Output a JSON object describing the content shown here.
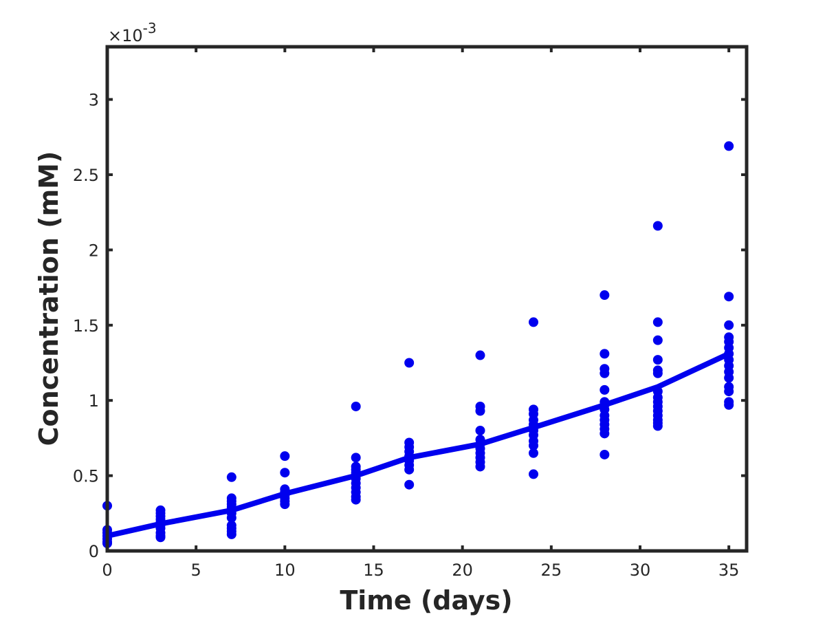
{
  "chart_data": {
    "type": "scatter",
    "xlabel": "Time (days)",
    "ylabel": "Concentration (mM)",
    "y_exponent_label": "×10",
    "y_exponent_power": "-3",
    "xlim": [
      0,
      36
    ],
    "ylim": [
      0,
      3.35
    ],
    "y_scale_note": "values in units of 1e-3 mM",
    "x_ticks": [
      0,
      5,
      10,
      15,
      20,
      25,
      30,
      35
    ],
    "y_ticks": [
      0,
      0.5,
      1,
      1.5,
      2,
      2.5,
      3
    ],
    "x_tick_labels": [
      "0",
      "5",
      "10",
      "15",
      "20",
      "25",
      "30",
      "35"
    ],
    "y_tick_labels": [
      "0",
      "0.5",
      "1",
      "1.5",
      "2",
      "2.5",
      "3"
    ],
    "grid": false,
    "colors": {
      "points": "#0000ee",
      "line": "#0000ee",
      "axes": "#262626"
    },
    "series": [
      {
        "type": "scatter",
        "points": [
          [
            0,
            0.3
          ],
          [
            0,
            0.14
          ],
          [
            0,
            0.12
          ],
          [
            0,
            0.1
          ],
          [
            0,
            0.08
          ],
          [
            0,
            0.06
          ],
          [
            0,
            0.05
          ],
          [
            3,
            0.27
          ],
          [
            3,
            0.25
          ],
          [
            3,
            0.23
          ],
          [
            3,
            0.21
          ],
          [
            3,
            0.19
          ],
          [
            3,
            0.17
          ],
          [
            3,
            0.15
          ],
          [
            3,
            0.12
          ],
          [
            3,
            0.1
          ],
          [
            3,
            0.09
          ],
          [
            7,
            0.49
          ],
          [
            7,
            0.35
          ],
          [
            7,
            0.33
          ],
          [
            7,
            0.31
          ],
          [
            7,
            0.29
          ],
          [
            7,
            0.27
          ],
          [
            7,
            0.25
          ],
          [
            7,
            0.22
          ],
          [
            7,
            0.17
          ],
          [
            7,
            0.15
          ],
          [
            7,
            0.13
          ],
          [
            7,
            0.11
          ],
          [
            10,
            0.63
          ],
          [
            10,
            0.52
          ],
          [
            10,
            0.41
          ],
          [
            10,
            0.39
          ],
          [
            10,
            0.37
          ],
          [
            10,
            0.35
          ],
          [
            10,
            0.33
          ],
          [
            10,
            0.31
          ],
          [
            14,
            0.96
          ],
          [
            14,
            0.62
          ],
          [
            14,
            0.56
          ],
          [
            14,
            0.54
          ],
          [
            14,
            0.52
          ],
          [
            14,
            0.5
          ],
          [
            14,
            0.48
          ],
          [
            14,
            0.45
          ],
          [
            14,
            0.42
          ],
          [
            14,
            0.39
          ],
          [
            14,
            0.36
          ],
          [
            14,
            0.34
          ],
          [
            17,
            1.25
          ],
          [
            17,
            0.72
          ],
          [
            17,
            0.69
          ],
          [
            17,
            0.66
          ],
          [
            17,
            0.63
          ],
          [
            17,
            0.6
          ],
          [
            17,
            0.57
          ],
          [
            17,
            0.54
          ],
          [
            17,
            0.44
          ],
          [
            21,
            1.3
          ],
          [
            21,
            0.96
          ],
          [
            21,
            0.93
          ],
          [
            21,
            0.8
          ],
          [
            21,
            0.74
          ],
          [
            21,
            0.71
          ],
          [
            21,
            0.68
          ],
          [
            21,
            0.65
          ],
          [
            21,
            0.62
          ],
          [
            21,
            0.59
          ],
          [
            21,
            0.56
          ],
          [
            24,
            1.52
          ],
          [
            24,
            0.94
          ],
          [
            24,
            0.91
          ],
          [
            24,
            0.87
          ],
          [
            24,
            0.84
          ],
          [
            24,
            0.8
          ],
          [
            24,
            0.77
          ],
          [
            24,
            0.73
          ],
          [
            24,
            0.7
          ],
          [
            24,
            0.65
          ],
          [
            24,
            0.51
          ],
          [
            28,
            1.7
          ],
          [
            28,
            1.31
          ],
          [
            28,
            1.21
          ],
          [
            28,
            1.18
          ],
          [
            28,
            1.07
          ],
          [
            28,
            0.99
          ],
          [
            28,
            0.97
          ],
          [
            28,
            0.94
          ],
          [
            28,
            0.9
          ],
          [
            28,
            0.87
          ],
          [
            28,
            0.84
          ],
          [
            28,
            0.81
          ],
          [
            28,
            0.78
          ],
          [
            28,
            0.64
          ],
          [
            31,
            2.16
          ],
          [
            31,
            1.52
          ],
          [
            31,
            1.4
          ],
          [
            31,
            1.27
          ],
          [
            31,
            1.2
          ],
          [
            31,
            1.18
          ],
          [
            31,
            1.06
          ],
          [
            31,
            1.02
          ],
          [
            31,
            0.99
          ],
          [
            31,
            0.96
          ],
          [
            31,
            0.93
          ],
          [
            31,
            0.9
          ],
          [
            31,
            0.87
          ],
          [
            31,
            0.85
          ],
          [
            31,
            0.83
          ],
          [
            35,
            2.69
          ],
          [
            35,
            1.69
          ],
          [
            35,
            1.5
          ],
          [
            35,
            1.42
          ],
          [
            35,
            1.39
          ],
          [
            35,
            1.35
          ],
          [
            35,
            1.31
          ],
          [
            35,
            1.27
          ],
          [
            35,
            1.23
          ],
          [
            35,
            1.19
          ],
          [
            35,
            1.15
          ],
          [
            35,
            1.09
          ],
          [
            35,
            1.06
          ],
          [
            35,
            0.99
          ],
          [
            35,
            0.97
          ]
        ]
      },
      {
        "type": "line",
        "x": [
          0,
          3,
          7,
          10,
          14,
          17,
          21,
          24,
          28,
          31,
          35
        ],
        "y": [
          0.1,
          0.18,
          0.27,
          0.38,
          0.5,
          0.62,
          0.71,
          0.82,
          0.97,
          1.09,
          1.31
        ]
      }
    ]
  }
}
